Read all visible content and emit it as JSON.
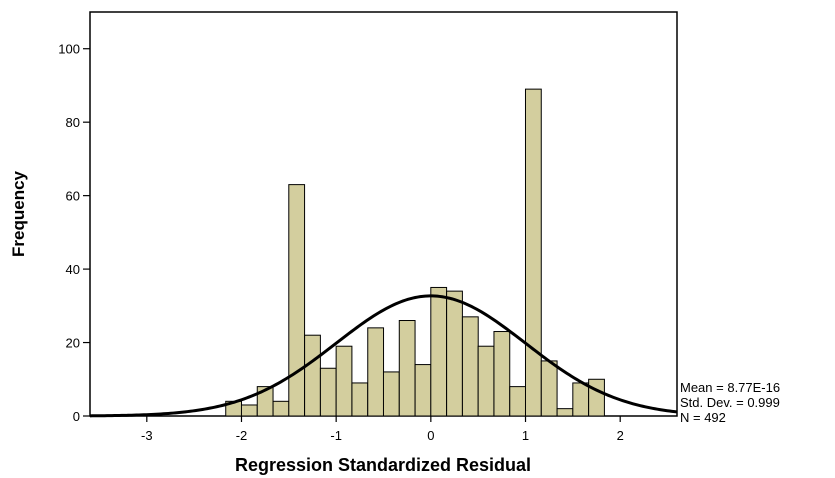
{
  "chart_data": {
    "type": "bar",
    "subtype": "histogram",
    "xlabel": "Regression Standardized Residual",
    "ylabel": "Frequency",
    "xlim": [
      -3.6,
      2.6
    ],
    "ylim": [
      0,
      110
    ],
    "x_ticks": [
      -3,
      -2,
      -1,
      0,
      1,
      2
    ],
    "x_tick_labels": [
      "-3",
      "-2",
      "-1",
      "0",
      "1",
      "2"
    ],
    "y_ticks": [
      0,
      20,
      40,
      60,
      80,
      100
    ],
    "y_tick_labels": [
      "0",
      "20",
      "40",
      "60",
      "80",
      "100"
    ],
    "bin_width": 0.1667,
    "bin_centers": [
      -2.083,
      -1.917,
      -1.75,
      -1.583,
      -1.417,
      -1.25,
      -1.083,
      -0.917,
      -0.75,
      -0.583,
      -0.417,
      -0.25,
      -0.083,
      0.083,
      0.25,
      0.417,
      0.583,
      0.75,
      0.917,
      1.083,
      1.25,
      1.417,
      1.583,
      1.75
    ],
    "values": [
      4,
      3,
      8,
      4,
      63,
      22,
      13,
      19,
      9,
      24,
      12,
      26,
      14,
      35,
      34,
      27,
      19,
      23,
      8,
      89,
      15,
      2,
      9,
      10
    ],
    "bar_color": "#d3ce9e",
    "normal_curve": {
      "mean": 0,
      "std": 0.999,
      "peak": 32.7,
      "color": "#000000"
    },
    "stats": {
      "mean": "Mean = 8.77E-16",
      "std": "Std. Dev. = 0.999",
      "n": "N = 492"
    }
  }
}
